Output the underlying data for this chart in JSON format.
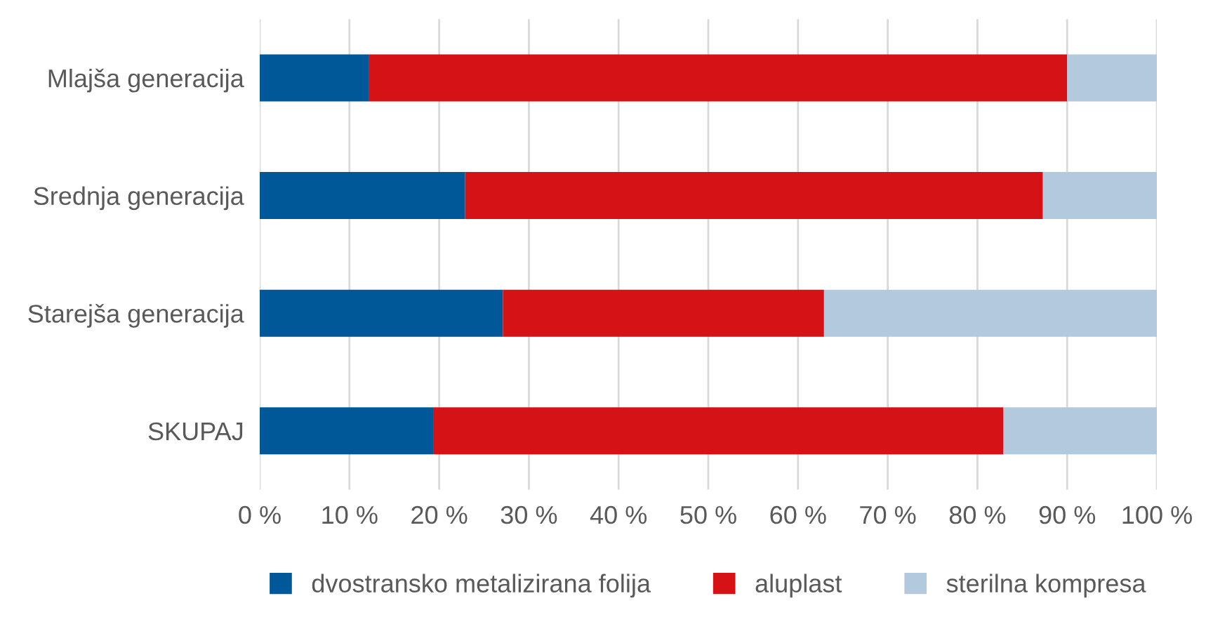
{
  "chart_data": {
    "type": "bar",
    "orientation": "horizontal",
    "stacked": true,
    "categories": [
      "Mlajša generacija",
      "Srednja generacija",
      "Starejša generacija",
      "SKUPAJ"
    ],
    "series": [
      {
        "name": "dvostransko metalizirana folija",
        "color": "#005899",
        "values": [
          12.2,
          22.9,
          27.1,
          19.4
        ]
      },
      {
        "name": "aluplast",
        "color": "#d51317",
        "values": [
          77.8,
          64.4,
          35.8,
          63.5
        ]
      },
      {
        "name": "sterilna kompresa",
        "color": "#b3c9dd",
        "values": [
          10.0,
          12.7,
          37.1,
          17.1
        ]
      }
    ],
    "xlim": [
      0,
      100
    ],
    "xticks": [
      {
        "value": 0,
        "label": "0 %"
      },
      {
        "value": 10,
        "label": "10 %"
      },
      {
        "value": 20,
        "label": "20 %"
      },
      {
        "value": 30,
        "label": "30 %"
      },
      {
        "value": 40,
        "label": "40 %"
      },
      {
        "value": 50,
        "label": "50 %"
      },
      {
        "value": 60,
        "label": "60 %"
      },
      {
        "value": 70,
        "label": "70 %"
      },
      {
        "value": 80,
        "label": "80 %"
      },
      {
        "value": 90,
        "label": "90 %"
      },
      {
        "value": 100,
        "label": "100 %"
      }
    ],
    "grid": "x",
    "legend": "bottom"
  }
}
